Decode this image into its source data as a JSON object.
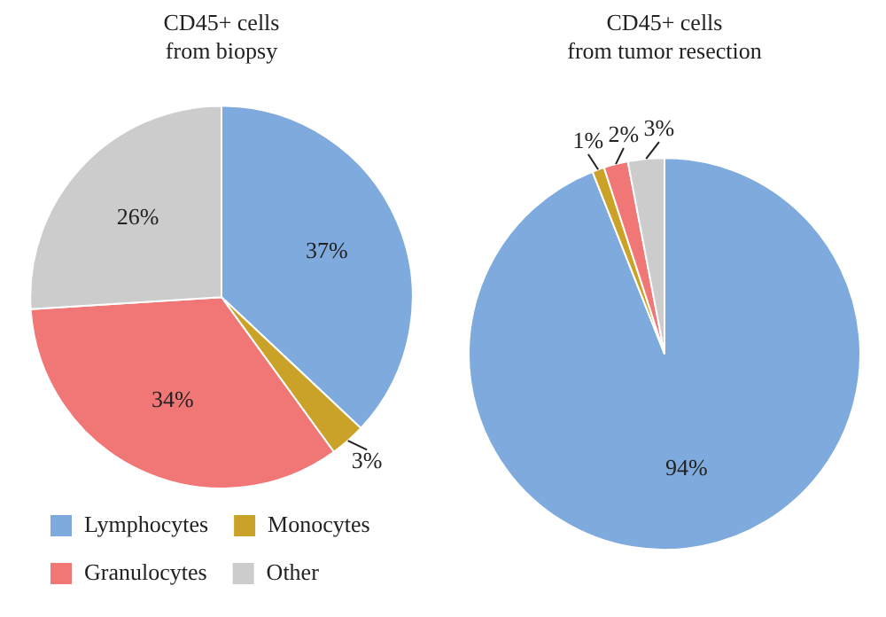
{
  "chart_data": [
    {
      "type": "pie",
      "title": "CD45+ cells\nfrom biopsy",
      "categories": [
        "Lymphocytes",
        "Monocytes",
        "Granulocytes",
        "Other"
      ],
      "values": [
        37,
        3,
        34,
        26
      ],
      "value_labels": [
        "37%",
        "3%",
        "34%",
        "26%"
      ],
      "colors": [
        "#7eaadd",
        "#c9a227",
        "#f17676",
        "#cccccc"
      ],
      "legend": "bottom"
    },
    {
      "type": "pie",
      "title": "CD45+ cells\nfrom tumor resection",
      "categories": [
        null,
        null,
        null,
        null
      ],
      "values": [
        94,
        1,
        2,
        3
      ],
      "value_labels": [
        "94%",
        "1%",
        "2%",
        "3%"
      ],
      "colors": [
        "#7eaadd",
        "#c9a227",
        "#f17676",
        "#cccccc"
      ],
      "legend": false
    }
  ]
}
